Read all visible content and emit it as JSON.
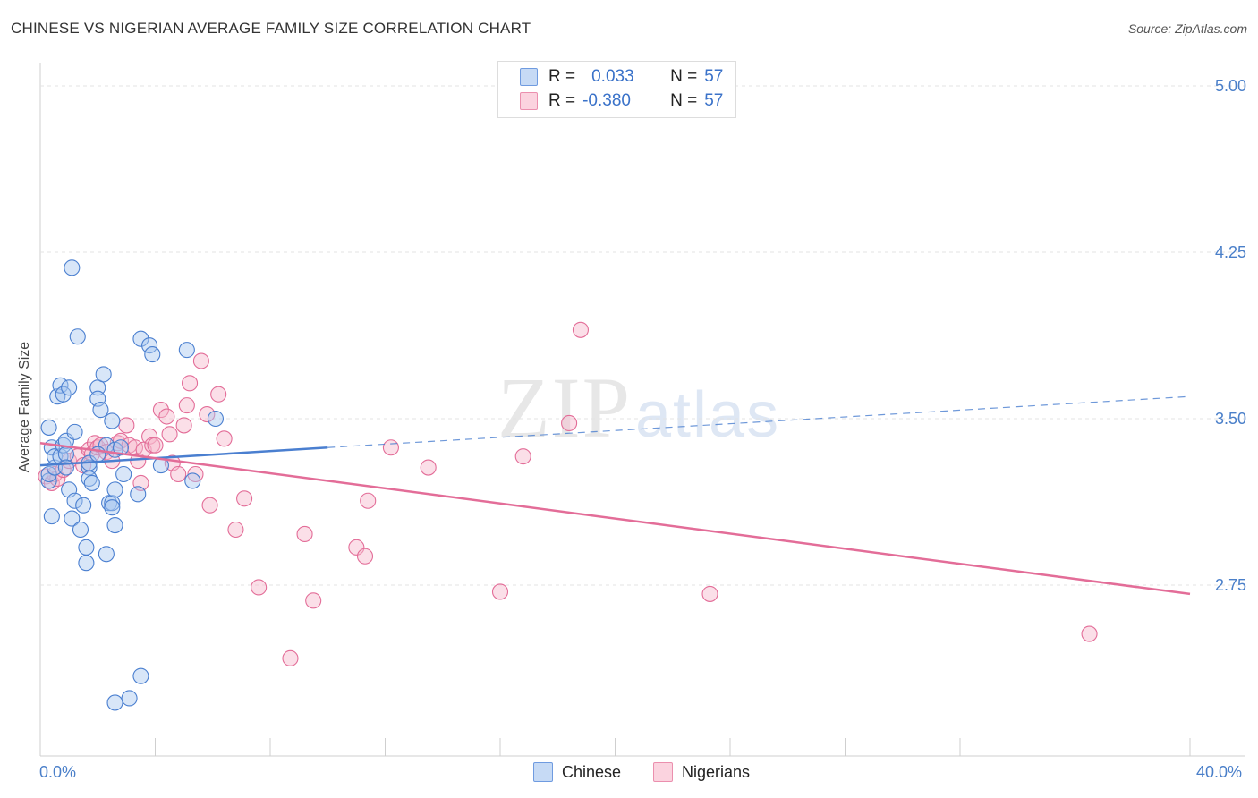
{
  "header": {
    "title": "CHINESE VS NIGERIAN AVERAGE FAMILY SIZE CORRELATION CHART",
    "source": "Source: ZipAtlas.com"
  },
  "watermark": {
    "zip": "ZIP",
    "atlas": "atlas"
  },
  "legend": {
    "rows": [
      {
        "r_label": "R =",
        "r_value": "0.033",
        "n_label": "N =",
        "n_value": "57",
        "color": "#a9c8f0"
      },
      {
        "r_label": "R =",
        "r_value": "-0.380",
        "n_label": "N =",
        "n_value": "57",
        "color": "#f6b8cb"
      }
    ]
  },
  "bottom_legend": {
    "chinese": "Chinese",
    "nigerians": "Nigerians"
  },
  "x_axis": {
    "min_label": "0.0%",
    "max_label": "40.0%"
  },
  "chart_data": {
    "type": "scatter",
    "title": "CHINESE VS NIGERIAN AVERAGE FAMILY SIZE CORRELATION CHART",
    "xlabel": "",
    "ylabel": "Average Family Size",
    "xlim": [
      0,
      40
    ],
    "ylim": [
      2.0,
      5.1
    ],
    "y_ticks": [
      2.75,
      3.5,
      4.25,
      5.0
    ],
    "y_tick_labels": [
      "2.75",
      "3.50",
      "4.25",
      "5.00"
    ],
    "x_tick_labels": [
      "0.0%",
      "40.0%"
    ],
    "grid": true,
    "legend_position": "top-center",
    "colors": {
      "chinese": "#4a7fd0",
      "nigerians": "#e36d98",
      "chinese_fill": "#a9c8f0",
      "nigerians_fill": "#f6b8cb"
    },
    "series": [
      {
        "name": "Chinese",
        "points": [
          [
            0.3,
            3.22
          ],
          [
            0.3,
            3.25
          ],
          [
            0.4,
            3.06
          ],
          [
            0.3,
            3.46
          ],
          [
            0.4,
            3.37
          ],
          [
            0.5,
            3.28
          ],
          [
            0.5,
            3.33
          ],
          [
            0.6,
            3.6
          ],
          [
            0.7,
            3.65
          ],
          [
            0.7,
            3.33
          ],
          [
            0.8,
            3.61
          ],
          [
            0.8,
            3.38
          ],
          [
            0.9,
            3.4
          ],
          [
            0.9,
            3.34
          ],
          [
            1.0,
            3.64
          ],
          [
            1.0,
            3.18
          ],
          [
            1.1,
            3.05
          ],
          [
            1.2,
            3.44
          ],
          [
            1.2,
            3.13
          ],
          [
            1.1,
            4.18
          ],
          [
            1.3,
            3.87
          ],
          [
            1.4,
            3.0
          ],
          [
            1.5,
            3.11
          ],
          [
            1.6,
            2.85
          ],
          [
            1.6,
            2.92
          ],
          [
            1.7,
            3.28
          ],
          [
            1.7,
            3.23
          ],
          [
            1.8,
            3.21
          ],
          [
            1.7,
            3.3
          ],
          [
            2.0,
            3.64
          ],
          [
            2.0,
            3.59
          ],
          [
            2.1,
            3.54
          ],
          [
            2.2,
            3.7
          ],
          [
            2.3,
            3.38
          ],
          [
            2.3,
            2.89
          ],
          [
            2.4,
            3.12
          ],
          [
            2.5,
            3.49
          ],
          [
            2.5,
            3.12
          ],
          [
            2.5,
            3.1
          ],
          [
            2.6,
            3.18
          ],
          [
            2.6,
            3.02
          ],
          [
            2.6,
            3.36
          ],
          [
            2.6,
            2.22
          ],
          [
            2.9,
            3.25
          ],
          [
            2.8,
            3.37
          ],
          [
            3.1,
            2.24
          ],
          [
            3.4,
            3.16
          ],
          [
            3.5,
            3.86
          ],
          [
            3.5,
            2.34
          ],
          [
            3.8,
            3.83
          ],
          [
            3.9,
            3.79
          ],
          [
            4.2,
            3.29
          ],
          [
            5.1,
            3.81
          ],
          [
            5.3,
            3.22
          ],
          [
            6.1,
            3.5
          ],
          [
            2.0,
            3.34
          ],
          [
            0.9,
            3.28
          ]
        ],
        "trend": {
          "x0": 0.0,
          "y0": 3.29,
          "x1": 10.0,
          "y1": 3.37,
          "dashed_to_x": 40.0,
          "dashed_to_y": 3.6
        }
      },
      {
        "name": "Nigerians",
        "points": [
          [
            0.2,
            3.24
          ],
          [
            0.4,
            3.21
          ],
          [
            0.5,
            3.25
          ],
          [
            0.6,
            3.23
          ],
          [
            0.8,
            3.27
          ],
          [
            1.0,
            3.31
          ],
          [
            1.3,
            3.33
          ],
          [
            1.5,
            3.29
          ],
          [
            1.7,
            3.36
          ],
          [
            1.8,
            3.34
          ],
          [
            1.9,
            3.39
          ],
          [
            2.0,
            3.37
          ],
          [
            2.1,
            3.38
          ],
          [
            2.3,
            3.35
          ],
          [
            2.5,
            3.31
          ],
          [
            2.7,
            3.39
          ],
          [
            2.8,
            3.4
          ],
          [
            3.0,
            3.47
          ],
          [
            3.1,
            3.38
          ],
          [
            3.3,
            3.37
          ],
          [
            3.4,
            3.31
          ],
          [
            3.6,
            3.36
          ],
          [
            3.8,
            3.42
          ],
          [
            3.9,
            3.38
          ],
          [
            4.0,
            3.38
          ],
          [
            4.2,
            3.54
          ],
          [
            4.4,
            3.51
          ],
          [
            4.5,
            3.43
          ],
          [
            4.6,
            3.3
          ],
          [
            4.8,
            3.25
          ],
          [
            5.0,
            3.47
          ],
          [
            5.1,
            3.56
          ],
          [
            5.2,
            3.66
          ],
          [
            5.4,
            3.25
          ],
          [
            5.6,
            3.76
          ],
          [
            5.8,
            3.52
          ],
          [
            5.9,
            3.11
          ],
          [
            6.2,
            3.61
          ],
          [
            6.4,
            3.41
          ],
          [
            6.8,
            3.0
          ],
          [
            7.1,
            3.14
          ],
          [
            7.6,
            2.74
          ],
          [
            8.7,
            2.42
          ],
          [
            9.2,
            2.98
          ],
          [
            9.5,
            2.68
          ],
          [
            11.0,
            2.92
          ],
          [
            11.3,
            2.88
          ],
          [
            11.4,
            3.13
          ],
          [
            12.2,
            3.37
          ],
          [
            13.5,
            3.28
          ],
          [
            16.0,
            2.72
          ],
          [
            16.8,
            3.33
          ],
          [
            18.4,
            3.48
          ],
          [
            18.8,
            3.9
          ],
          [
            23.3,
            2.71
          ],
          [
            36.5,
            2.53
          ],
          [
            3.5,
            3.21
          ]
        ],
        "trend": {
          "x0": 0.0,
          "y0": 3.39,
          "x1": 40.0,
          "y1": 2.71
        }
      }
    ]
  }
}
